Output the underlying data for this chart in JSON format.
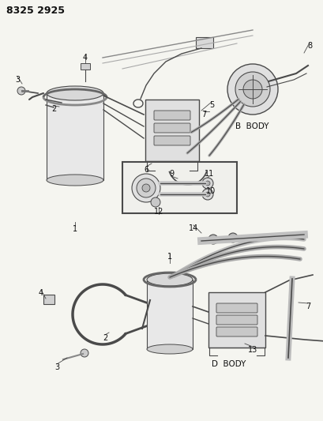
{
  "title": "8325 2925",
  "bg_color": "#f5f5f0",
  "line_color": "#4a4a4a",
  "text_color": "#111111",
  "b_body_label": "B  BODY",
  "d_body_label": "D  BODY",
  "figsize": [
    4.1,
    5.33
  ],
  "dpi": 100
}
